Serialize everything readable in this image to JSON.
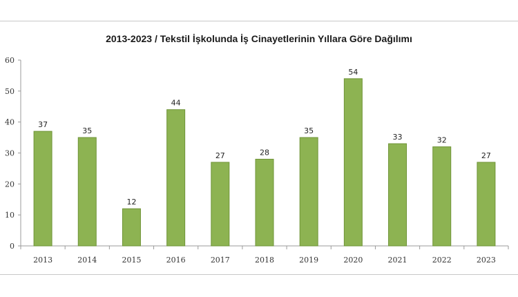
{
  "chart_data": {
    "type": "bar",
    "title": "2013-2023 / Tekstil İşkolunda İş Cinayetlerinin Yıllara Göre Dağılımı",
    "xlabel": "",
    "ylabel": "",
    "categories": [
      "2013",
      "2014",
      "2015",
      "2016",
      "2017",
      "2018",
      "2019",
      "2020",
      "2021",
      "2022",
      "2023"
    ],
    "values": [
      37,
      35,
      12,
      44,
      27,
      28,
      35,
      54,
      33,
      32,
      27
    ],
    "ylim": [
      0,
      60
    ],
    "yticks": [
      0,
      10,
      20,
      30,
      40,
      50,
      60
    ],
    "grid": false,
    "legend": "none",
    "bar_color": "#8db352",
    "bar_edge_color": "#6f9438"
  }
}
